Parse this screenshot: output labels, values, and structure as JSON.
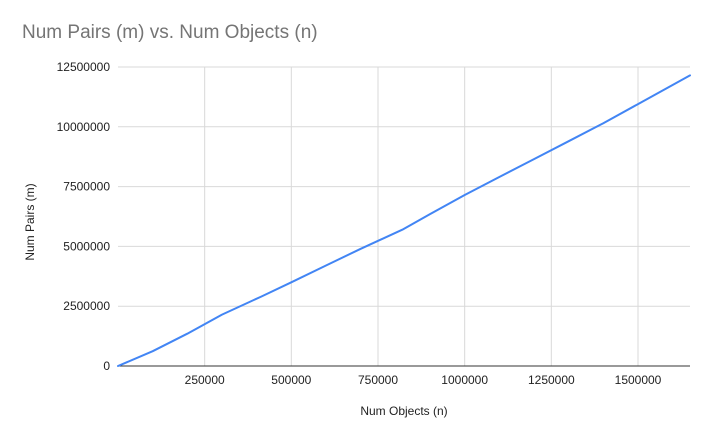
{
  "chart_data": {
    "type": "line",
    "title": "Num Pairs (m) vs. Num Objects (n)",
    "xlabel": "Num Objects (n)",
    "ylabel": "Num Pairs (m)",
    "xlim": [
      0,
      1650000
    ],
    "ylim": [
      0,
      12500000
    ],
    "x_ticks": [
      250000,
      500000,
      750000,
      1000000,
      1250000,
      1500000
    ],
    "x_tick_labels": [
      "250000",
      "500000",
      "750000",
      "1000000",
      "1250000",
      "1500000"
    ],
    "y_ticks": [
      0,
      2500000,
      5000000,
      7500000,
      10000000,
      12500000
    ],
    "y_tick_labels": [
      "0",
      "2500000",
      "5000000",
      "7500000",
      "10000000",
      "12500000"
    ],
    "grid": true,
    "legend": "none",
    "series": [
      {
        "color": "#4285f4",
        "x": [
          0,
          100000,
          200000,
          300000,
          413000,
          500000,
          600000,
          700000,
          820000,
          900000,
          1000000,
          1100000,
          1200000,
          1300000,
          1400000,
          1500000,
          1650000
        ],
        "y": [
          0,
          620000,
          1350000,
          2150000,
          2900000,
          3500000,
          4200000,
          4900000,
          5700000,
          6350000,
          7150000,
          7900000,
          8650000,
          9400000,
          10150000,
          10950000,
          12150000
        ]
      }
    ]
  }
}
